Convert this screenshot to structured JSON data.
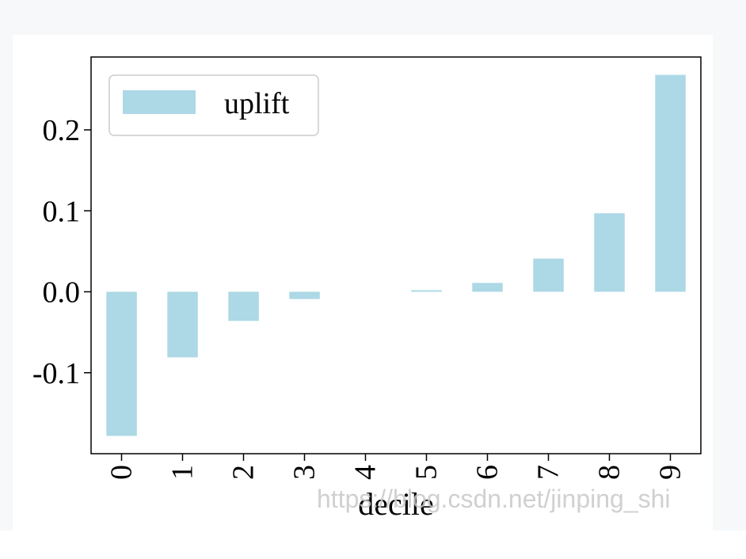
{
  "chart_data": {
    "type": "bar",
    "categories": [
      "0",
      "1",
      "2",
      "3",
      "4",
      "5",
      "6",
      "7",
      "8",
      "9"
    ],
    "series": [
      {
        "name": "uplift",
        "values": [
          -0.178,
          -0.081,
          -0.036,
          -0.009,
          0.0,
          0.002,
          0.011,
          0.041,
          0.097,
          0.268
        ],
        "color": "#add8e6"
      }
    ],
    "xlabel": "decile",
    "ylabel": "",
    "ylim": [
      -0.2,
      0.29
    ],
    "yticks": [
      -0.1,
      0.0,
      0.1,
      0.2
    ],
    "ytick_labels": [
      "-0.1",
      "0.0",
      "0.1",
      "0.2"
    ],
    "x_tick_rotation": 90,
    "grid": false,
    "legend": {
      "placement": "top-left",
      "entries": [
        "uplift"
      ]
    },
    "watermark": "https://blog.csdn.net/jinping_shi"
  }
}
